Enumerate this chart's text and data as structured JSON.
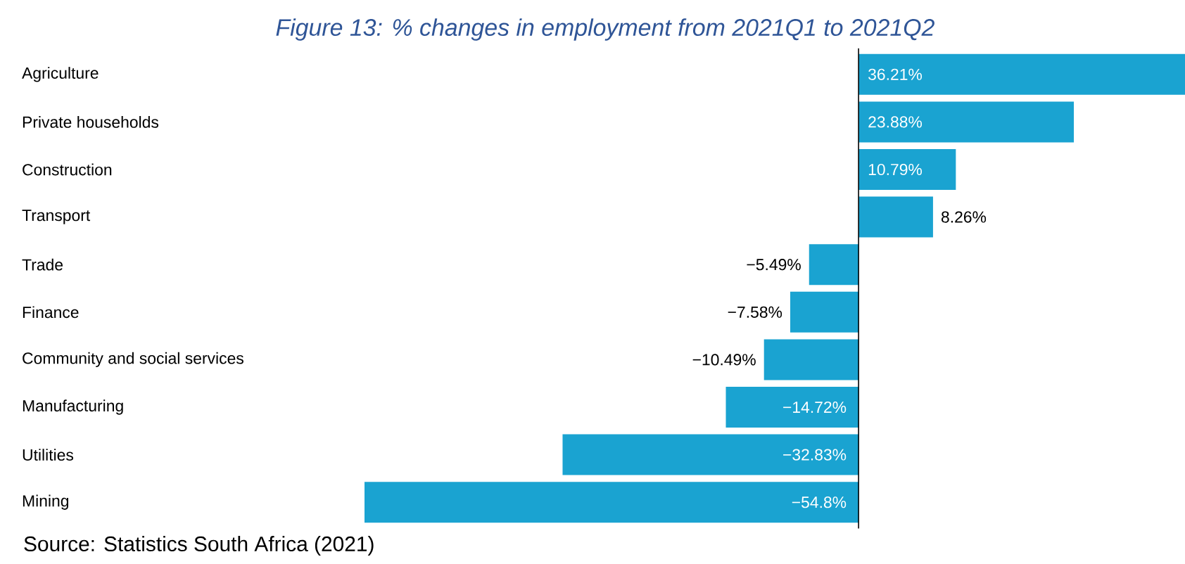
{
  "chart_data": {
    "type": "bar",
    "orientation": "horizontal",
    "title": "Figure 13: % changes in employment from 2021Q1 to 2021Q2",
    "categories": [
      "Agriculture",
      "Private households",
      "Construction",
      "Transport",
      "Trade",
      "Finance",
      "Community and social services",
      "Manufacturing",
      "Utilities",
      "Mining"
    ],
    "values": [
      36.21,
      23.88,
      10.79,
      8.26,
      -5.49,
      -7.58,
      -10.49,
      -14.72,
      -32.83,
      -54.8
    ],
    "value_labels": [
      "36.21%",
      "23.88%",
      "10.79%",
      "8.26%",
      "−5.49%",
      "−7.58%",
      "−10.49%",
      "−14.72%",
      "−32.83%",
      "−54.8%"
    ],
    "color": "#1aa3d1",
    "annotations": [
      "Source: Statistics South Africa (2021)"
    ]
  }
}
